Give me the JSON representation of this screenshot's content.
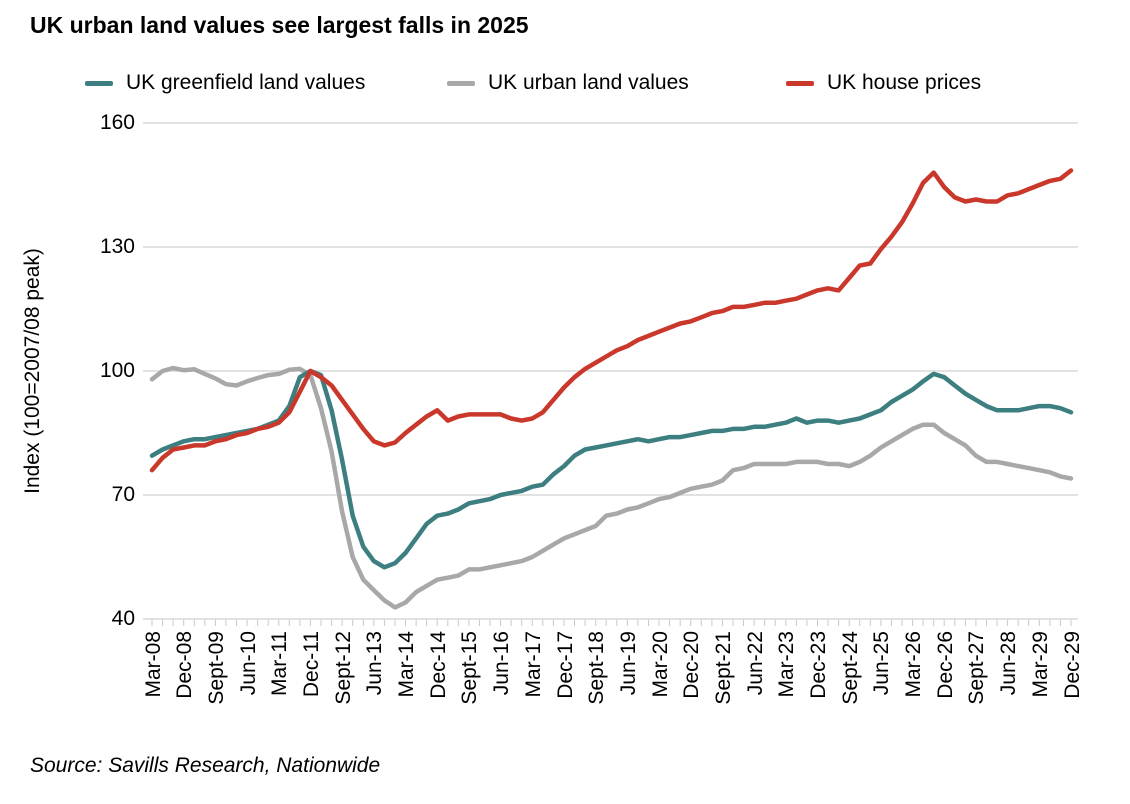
{
  "title": "UK urban land values see largest falls in 2025",
  "legend": [
    {
      "label": "UK greenfield land values",
      "color": "#3d7f81"
    },
    {
      "label": "UK urban land values",
      "color": "#a8a8a8"
    },
    {
      "label": "UK house prices",
      "color": "#ca382b"
    }
  ],
  "y_axis": {
    "title": "Index (100=2007/08 peak)",
    "ticks": [
      160,
      130,
      100,
      70,
      40
    ]
  },
  "source": "Source: Savills Research, Nationwide",
  "chart_data": {
    "type": "line",
    "title": "UK urban land values see largest falls in 2025",
    "ylabel": "Index (100=2007/08 peak)",
    "ylim": [
      40,
      160
    ],
    "grid": "horizontal",
    "legend_position": "top",
    "frequency": "quarterly",
    "x_start": "Mar-08",
    "x_end": "Dec-29",
    "x_label_step_quarters": 3,
    "x_tick_labels": [
      "Mar-08",
      "Dec-08",
      "Sept-09",
      "Jun-10",
      "Mar-11",
      "Dec-11",
      "Sept-12",
      "Jun-13",
      "Mar-14",
      "Dec-14",
      "Sept-15",
      "Jun-16",
      "Mar-17",
      "Dec-17",
      "Sept-18",
      "Jun-19",
      "Mar-20",
      "Dec-20",
      "Sept-21",
      "Jun-22",
      "Mar-23",
      "Dec-23",
      "Sept-24",
      "Jun-25",
      "Mar-26",
      "Dec-26",
      "Sept-27",
      "Jun-28",
      "Mar-29",
      "Dec-29"
    ],
    "series": [
      {
        "name": "UK greenfield land values",
        "color": "#3d7f81",
        "values": [
          79.5,
          81,
          82,
          83,
          83.5,
          83.5,
          84,
          84.5,
          85,
          85.5,
          86,
          87,
          88,
          91.5,
          98.5,
          100,
          99,
          90.5,
          78.5,
          65,
          57.5,
          54,
          52.5,
          53.5,
          56,
          59.5,
          63,
          65,
          65.5,
          66.5,
          68,
          68.5,
          69,
          70,
          70.5,
          71,
          72,
          72.5,
          75,
          77,
          79.5,
          81,
          81.5,
          82,
          82.5,
          83,
          83.5,
          83,
          83.5,
          84,
          84,
          84.5,
          85,
          85.5,
          85.5,
          86,
          86,
          86.5,
          86.5,
          87,
          87.5,
          88.5,
          87.5,
          88,
          88,
          87.5,
          88,
          88.5,
          89.5,
          90.5,
          92.5,
          94,
          95.5,
          97.5,
          99.3,
          98.5,
          96.5,
          94.5,
          93,
          91.5,
          90.5,
          90.5,
          90.5,
          91,
          91.5,
          91.5,
          91,
          90
        ]
      },
      {
        "name": "UK urban land values",
        "color": "#a8a8a8",
        "values": [
          98,
          100,
          100.7,
          100.2,
          100.4,
          99.3,
          98.2,
          96.8,
          96.5,
          97.5,
          98.3,
          99,
          99.3,
          100.3,
          100.5,
          99,
          91,
          80.5,
          66,
          55,
          49.5,
          47,
          44.5,
          42.8,
          44,
          46.5,
          48,
          49.5,
          50,
          50.5,
          52,
          52,
          52.5,
          53,
          53.5,
          54,
          55,
          56.5,
          58,
          59.5,
          60.5,
          61.5,
          62.5,
          65,
          65.5,
          66.5,
          67,
          68,
          69,
          69.5,
          70.5,
          71.5,
          72,
          72.5,
          73.5,
          76,
          76.5,
          77.5,
          77.5,
          77.5,
          77.5,
          78,
          78,
          78,
          77.5,
          77.5,
          77,
          78,
          79.5,
          81.5,
          83,
          84.5,
          86,
          87,
          87,
          85,
          83.5,
          82,
          79.5,
          78,
          78,
          77.5,
          77,
          76.5,
          76,
          75.5,
          74.5,
          74
        ]
      },
      {
        "name": "UK house prices",
        "color": "#ca382b",
        "values": [
          76,
          79,
          81,
          81.5,
          82,
          82,
          83,
          83.5,
          84.5,
          85,
          86,
          86.5,
          87.5,
          90,
          95,
          100,
          98.5,
          96.5,
          93,
          89.5,
          86,
          83,
          82,
          82.7,
          85,
          87,
          89,
          90.5,
          88,
          89,
          89.5,
          89.5,
          89.5,
          89.5,
          88.5,
          88,
          88.5,
          90,
          93,
          96,
          98.5,
          100.5,
          102,
          103.5,
          105,
          106,
          107.5,
          108.5,
          109.5,
          110.5,
          111.5,
          112,
          113,
          114,
          114.5,
          115.5,
          115.5,
          116,
          116.5,
          116.5,
          117,
          117.5,
          118.5,
          119.5,
          120,
          119.5,
          122.5,
          125.5,
          126,
          129.5,
          132.5,
          136,
          140.5,
          145.5,
          148,
          144.5,
          142,
          141,
          141.5,
          141,
          141,
          142.5,
          143,
          144,
          145,
          146,
          146.5,
          148.5
        ]
      }
    ]
  }
}
